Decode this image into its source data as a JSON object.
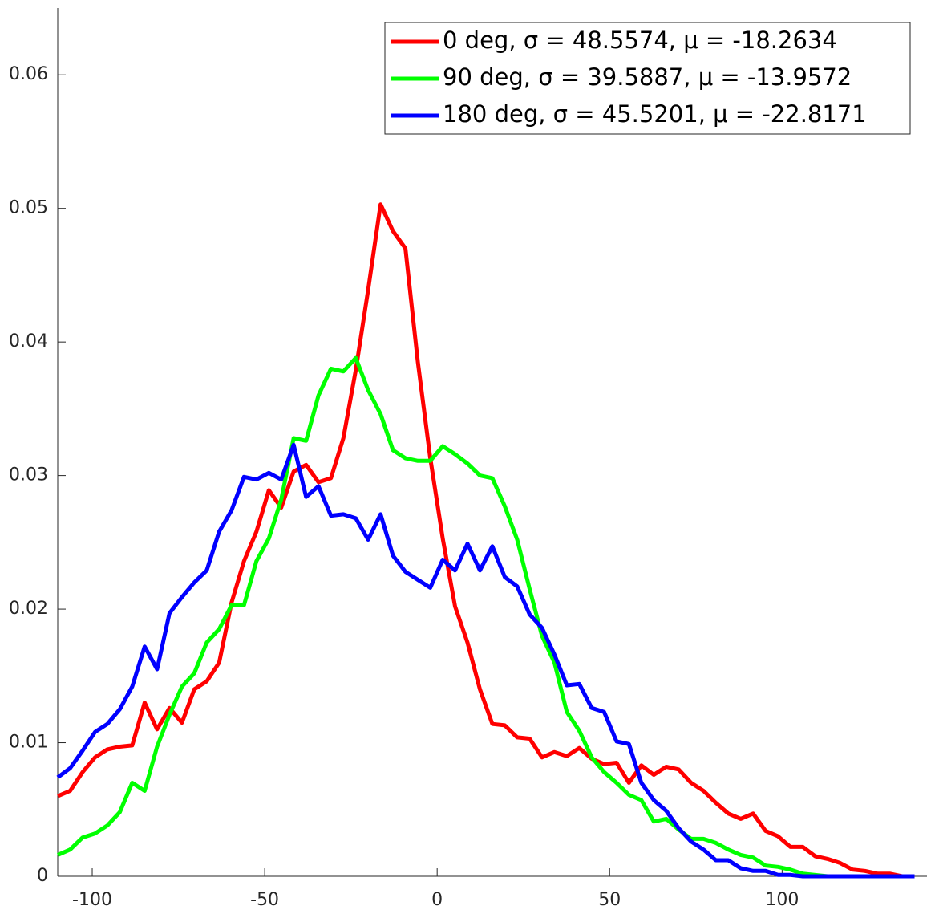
{
  "chart_data": {
    "type": "line",
    "x": [
      -110,
      -106.4,
      -102.8,
      -99.2,
      -95.6,
      -92,
      -88.4,
      -84.8,
      -81.2,
      -77.6,
      -74,
      -70.4,
      -66.8,
      -63.2,
      -59.6,
      -56,
      -52.4,
      -48.8,
      -45.2,
      -41.6,
      -38,
      -34.4,
      -30.8,
      -27.2,
      -23.6,
      -20,
      -16.4,
      -12.8,
      -9.2,
      -5.6,
      -2,
      1.6,
      5.2,
      8.8,
      12.4,
      16,
      19.6,
      23.2,
      26.8,
      30.4,
      34,
      37.6,
      41.2,
      44.8,
      48.4,
      52,
      55.6,
      59.2,
      62.8,
      66.4,
      70,
      73.6,
      77.2,
      80.8,
      84.4,
      88,
      91.6,
      95.2,
      98.8,
      102.4,
      106,
      109.6,
      113.2,
      116.8,
      120.4,
      124,
      127.6,
      131.2,
      134.8,
      138.4
    ],
    "series": [
      {
        "name": "0 deg, σ = 48.5574, μ = -18.2634",
        "color": "#ff0000",
        "values": [
          0.006,
          0.0064,
          0.0078,
          0.0089,
          0.0095,
          0.0097,
          0.0098,
          0.013,
          0.011,
          0.0126,
          0.0115,
          0.014,
          0.0146,
          0.016,
          0.0205,
          0.0236,
          0.0258,
          0.0289,
          0.0276,
          0.0303,
          0.0308,
          0.0295,
          0.0298,
          0.0328,
          0.0379,
          0.0439,
          0.0503,
          0.0483,
          0.047,
          0.0385,
          0.0313,
          0.0253,
          0.0202,
          0.0175,
          0.014,
          0.0114,
          0.0113,
          0.0104,
          0.0103,
          0.0089,
          0.0093,
          0.009,
          0.0096,
          0.0088,
          0.0084,
          0.0085,
          0.007,
          0.0083,
          0.0076,
          0.0082,
          0.008,
          0.007,
          0.0064,
          0.0055,
          0.0047,
          0.0043,
          0.0047,
          0.0034,
          0.003,
          0.0022,
          0.0022,
          0.0015,
          0.0013,
          0.001,
          0.0005,
          0.0004,
          0.0002,
          0.0002,
          0,
          0
        ]
      },
      {
        "name": "90 deg, σ = 39.5887, μ = -13.9572",
        "color": "#00ff00",
        "values": [
          0.0016,
          0.002,
          0.0029,
          0.0032,
          0.0038,
          0.0048,
          0.007,
          0.0064,
          0.0097,
          0.0121,
          0.0142,
          0.0152,
          0.0175,
          0.0185,
          0.0203,
          0.0203,
          0.0236,
          0.0253,
          0.0282,
          0.0328,
          0.0326,
          0.036,
          0.038,
          0.0378,
          0.0388,
          0.0364,
          0.0346,
          0.0319,
          0.0313,
          0.0311,
          0.0311,
          0.0322,
          0.0316,
          0.0309,
          0.03,
          0.0298,
          0.0277,
          0.0252,
          0.0215,
          0.018,
          0.016,
          0.0123,
          0.0109,
          0.0089,
          0.0078,
          0.007,
          0.0061,
          0.0057,
          0.0041,
          0.0043,
          0.0035,
          0.0028,
          0.0028,
          0.0025,
          0.002,
          0.0016,
          0.0014,
          0.0008,
          0.0007,
          0.0005,
          0.0002,
          0.0001,
          0,
          0,
          0,
          0,
          0,
          0,
          0,
          0
        ]
      },
      {
        "name": "180 deg, σ = 45.5201, μ = -22.8171",
        "color": "#0000ff",
        "values": [
          0.0074,
          0.0081,
          0.0094,
          0.0108,
          0.0114,
          0.0125,
          0.0142,
          0.0172,
          0.0155,
          0.0197,
          0.0209,
          0.022,
          0.0229,
          0.0258,
          0.0274,
          0.0299,
          0.0297,
          0.0302,
          0.0297,
          0.0323,
          0.0284,
          0.0292,
          0.027,
          0.0271,
          0.0268,
          0.0252,
          0.0271,
          0.024,
          0.0228,
          0.0222,
          0.0216,
          0.0237,
          0.0229,
          0.0249,
          0.0229,
          0.0247,
          0.0224,
          0.0217,
          0.0196,
          0.0186,
          0.0166,
          0.0143,
          0.0144,
          0.0126,
          0.0123,
          0.0101,
          0.0099,
          0.007,
          0.0057,
          0.0049,
          0.0036,
          0.0026,
          0.002,
          0.0012,
          0.0012,
          0.0006,
          0.0004,
          0.0004,
          0.0001,
          0.0001,
          0,
          0,
          0,
          0,
          0,
          0,
          0,
          0,
          0,
          0
        ]
      }
    ],
    "xlim": [
      -110,
      142
    ],
    "ylim": [
      0,
      0.065
    ],
    "xticks": [
      -100,
      -50,
      0,
      50,
      100
    ],
    "yticks": [
      0,
      0.01,
      0.02,
      0.03,
      0.04,
      0.05,
      0.06
    ],
    "legend": "upper right",
    "grid": false
  }
}
